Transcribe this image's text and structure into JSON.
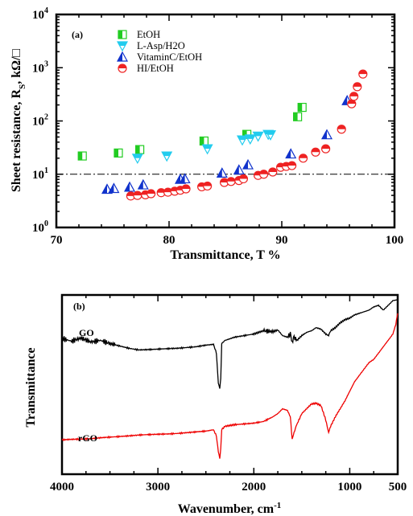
{
  "chart_data": [
    {
      "type": "scatter",
      "panel_label": "(a)",
      "xlabel": "Transmittance, T %",
      "ylabel": "Sheet resistance, R",
      "ylabel_sub": "S",
      "ylabel_unit": ", kΩ/□",
      "xlim": [
        70,
        100
      ],
      "ylim": [
        1,
        10000
      ],
      "yscale": "log",
      "xticks": [
        "70",
        "80",
        "90",
        "100"
      ],
      "yticks": [
        {
          "base": "10",
          "exp": "0"
        },
        {
          "base": "10",
          "exp": "1"
        },
        {
          "base": "10",
          "exp": "2"
        },
        {
          "base": "10",
          "exp": "3"
        },
        {
          "base": "10",
          "exp": "4"
        }
      ],
      "reference_line_y": 10,
      "legend_position": "top-left",
      "series": [
        {
          "name": "EtOH",
          "marker": "square-half",
          "color": "#22cc22",
          "x": [
            72.3,
            75.5,
            77.4,
            83.1,
            86.9,
            91.4,
            91.8
          ],
          "y": [
            22,
            25,
            29,
            42,
            56,
            120,
            180
          ]
        },
        {
          "name": "L-Asp/H2O",
          "marker": "triangle-down-half",
          "color": "#22ccee",
          "x": [
            77.2,
            79.8,
            83.4,
            86.5,
            87.2,
            87.9,
            88.8,
            89.0
          ],
          "y": [
            20,
            22,
            30,
            44,
            46,
            52,
            56,
            55
          ]
        },
        {
          "name": "VitaminC/EtOH",
          "marker": "triangle-up-half",
          "color": "#1133cc",
          "x": [
            74.5,
            75.1,
            76.5,
            77.7,
            81.0,
            81.4,
            84.7,
            86.2,
            87.0,
            90.8,
            94.0,
            95.8
          ],
          "y": [
            5.2,
            5.4,
            5.7,
            6.3,
            8.0,
            8.2,
            10.5,
            12.0,
            15.0,
            24.0,
            55.0,
            240.0
          ]
        },
        {
          "name": "HI/EtOH",
          "marker": "circle-half",
          "color": "#ee2222",
          "x": [
            76.6,
            77.2,
            77.9,
            78.4,
            79.3,
            79.9,
            80.5,
            81.0,
            81.5,
            82.9,
            83.4,
            84.9,
            85.5,
            86.2,
            86.6,
            87.9,
            88.4,
            89.2,
            89.9,
            90.4,
            90.9,
            91.9,
            93.0,
            93.9,
            95.3,
            96.2,
            96.4,
            96.7,
            97.2
          ],
          "y": [
            3.9,
            4.0,
            4.1,
            4.3,
            4.5,
            4.6,
            4.8,
            5.0,
            5.3,
            5.8,
            6.0,
            7.0,
            7.3,
            7.6,
            8.2,
            9.5,
            10.0,
            11.0,
            13.5,
            14.0,
            14.5,
            20.0,
            26.0,
            30.0,
            70.0,
            210.0,
            290.0,
            440.0,
            760.0
          ]
        }
      ]
    },
    {
      "type": "line",
      "panel_label": "(b)",
      "xlabel": "Wavenumber, cm",
      "xlabel_sup": "-1",
      "ylabel": "Transmittance",
      "xlim": [
        4000,
        500
      ],
      "xticks": [
        "4000",
        "3000",
        "2000",
        "1000",
        "500"
      ],
      "xtick_values": [
        4000,
        3000,
        2000,
        1000,
        500
      ],
      "ylim": [
        0,
        1
      ],
      "series": [
        {
          "name": "GO",
          "color": "#000000",
          "x": [
            4000,
            3900,
            3800,
            3700,
            3600,
            3500,
            3400,
            3300,
            3200,
            3100,
            3000,
            2900,
            2800,
            2700,
            2600,
            2500,
            2420,
            2390,
            2370,
            2355,
            2345,
            2335,
            2300,
            2250,
            2200,
            2100,
            2000,
            1950,
            1900,
            1800,
            1750,
            1700,
            1650,
            1620,
            1600,
            1580,
            1550,
            1500,
            1450,
            1400,
            1350,
            1300,
            1250,
            1220,
            1200,
            1150,
            1100,
            1050,
            1000,
            950,
            900,
            850,
            800,
            750,
            700,
            650,
            600,
            550,
            500
          ],
          "y": [
            0.752,
            0.735,
            0.755,
            0.73,
            0.74,
            0.72,
            0.705,
            0.69,
            0.68,
            0.682,
            0.685,
            0.688,
            0.69,
            0.695,
            0.7,
            0.71,
            0.715,
            0.66,
            0.47,
            0.44,
            0.5,
            0.72,
            0.74,
            0.75,
            0.76,
            0.77,
            0.78,
            0.79,
            0.8,
            0.795,
            0.805,
            0.77,
            0.76,
            0.78,
            0.73,
            0.76,
            0.74,
            0.77,
            0.79,
            0.8,
            0.82,
            0.81,
            0.78,
            0.77,
            0.8,
            0.82,
            0.85,
            0.87,
            0.88,
            0.9,
            0.91,
            0.92,
            0.93,
            0.95,
            0.96,
            0.93,
            0.96,
            0.99,
            0.995
          ]
        },
        {
          "name": "rGO",
          "color": "#ee0000",
          "x": [
            4000,
            3900,
            3800,
            3700,
            3600,
            3500,
            3400,
            3300,
            3200,
            3100,
            3000,
            2900,
            2800,
            2700,
            2600,
            2500,
            2420,
            2390,
            2370,
            2355,
            2345,
            2335,
            2300,
            2250,
            2200,
            2100,
            2000,
            1900,
            1800,
            1750,
            1700,
            1650,
            1620,
            1600,
            1580,
            1560,
            1500,
            1450,
            1400,
            1350,
            1300,
            1250,
            1220,
            1200,
            1150,
            1100,
            1050,
            1000,
            950,
            900,
            850,
            800,
            750,
            700,
            650,
            600,
            550,
            520,
            500
          ],
          "y": [
            0.115,
            0.118,
            0.12,
            0.122,
            0.128,
            0.132,
            0.136,
            0.14,
            0.145,
            0.148,
            0.15,
            0.152,
            0.155,
            0.16,
            0.165,
            0.17,
            0.178,
            0.14,
            0.04,
            0.0,
            0.06,
            0.18,
            0.2,
            0.205,
            0.21,
            0.215,
            0.22,
            0.23,
            0.26,
            0.28,
            0.31,
            0.3,
            0.26,
            0.12,
            0.16,
            0.2,
            0.28,
            0.31,
            0.34,
            0.345,
            0.33,
            0.24,
            0.16,
            0.2,
            0.26,
            0.31,
            0.36,
            0.42,
            0.48,
            0.52,
            0.56,
            0.6,
            0.62,
            0.66,
            0.7,
            0.74,
            0.78,
            0.84,
            0.91
          ]
        }
      ]
    }
  ]
}
